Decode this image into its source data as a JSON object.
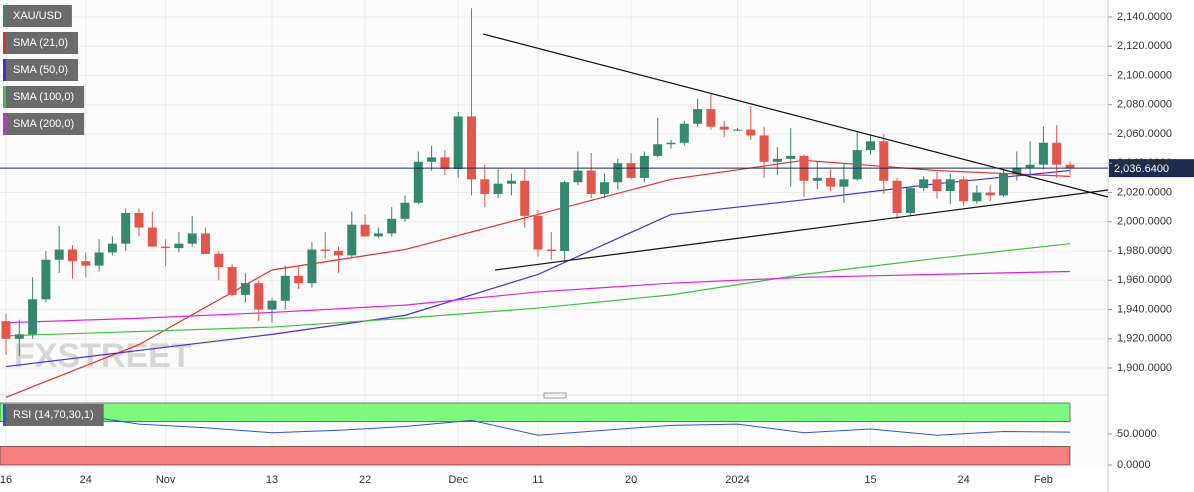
{
  "chart_data": [
    {
      "type": "candlestick",
      "name": "XAU/USD",
      "up_color": "#35876f",
      "down_color": "#e2564c",
      "categories": [
        "16",
        null,
        null,
        null,
        null,
        null,
        "24",
        null,
        null,
        null,
        null,
        null,
        "Nov",
        null,
        null,
        null,
        null,
        null,
        null,
        null,
        "13",
        null,
        null,
        null,
        null,
        null,
        null,
        "22",
        null,
        null,
        null,
        null,
        null,
        null,
        "Dec",
        null,
        null,
        null,
        null,
        null,
        "11",
        null,
        null,
        null,
        null,
        null,
        null,
        "20",
        null,
        null,
        null,
        null,
        null,
        null,
        null,
        "2024",
        null,
        null,
        null,
        null,
        null,
        null,
        null,
        null,
        null,
        "15",
        null,
        null,
        null,
        null,
        null,
        null,
        "24",
        null,
        null,
        null,
        null,
        null,
        "Feb",
        null,
        null
      ],
      "open": [
        1932,
        1920,
        1923,
        1947,
        1974,
        1981,
        1973,
        1970,
        1979,
        1985,
        2006,
        1996,
        1983,
        1982,
        1985,
        1992,
        1978,
        1969,
        1950,
        1958,
        1940,
        1946,
        1963,
        1958,
        1981,
        1980,
        1977,
        1998,
        1990,
        1992,
        2002,
        2013,
        2041,
        2044,
        2036,
        2072,
        2029,
        2019,
        2026,
        2028,
        2004,
        1981,
        1980,
        2027,
        2035,
        2019,
        2027,
        2040,
        2030,
        2045,
        2053,
        2054,
        2067,
        2077,
        2065,
        2063,
        2063,
        2059,
        2041,
        2043,
        2045,
        2028,
        2030,
        2024,
        2029,
        2049,
        2055,
        2028,
        2006,
        2023,
        2029,
        2021,
        2029,
        2014,
        2020,
        2018,
        2033,
        2037,
        2039,
        2054,
        2039
      ],
      "high": [
        1937,
        1933,
        1962,
        1980,
        1997,
        1984,
        1979,
        1988,
        1990,
        2009,
        2009,
        2007,
        1988,
        1993,
        2004,
        1996,
        1980,
        1971,
        1965,
        1960,
        1948,
        1970,
        1970,
        1986,
        1993,
        1983,
        2007,
        2005,
        1996,
        2010,
        2018,
        2048,
        2052,
        2049,
        2075,
        2146,
        2039,
        2036,
        2033,
        2036,
        2008,
        1993,
        2028,
        2048,
        2047,
        2033,
        2043,
        2047,
        2048,
        2071,
        2056,
        2069,
        2084,
        2088,
        2069,
        2064,
        2079,
        2065,
        2051,
        2064,
        2046,
        2041,
        2036,
        2040,
        2062,
        2059,
        2060,
        2030,
        2024,
        2031,
        2034,
        2033,
        2031,
        2025,
        2025,
        2036,
        2048,
        2055,
        2065,
        2066,
        2041
      ],
      "low": [
        1909,
        1908,
        1920,
        1945,
        1965,
        1961,
        1962,
        1966,
        1977,
        1980,
        1990,
        1985,
        1970,
        1979,
        1983,
        1978,
        1960,
        1949,
        1945,
        1932,
        1931,
        1940,
        1954,
        1955,
        1975,
        1965,
        1975,
        1990,
        1989,
        1990,
        2000,
        2012,
        2035,
        2032,
        2030,
        2018,
        2010,
        2016,
        2018,
        1996,
        1976,
        1974,
        1973,
        2025,
        2016,
        2016,
        2022,
        2029,
        2027,
        2044,
        2050,
        2052,
        2065,
        2063,
        2058,
        2062,
        2056,
        2030,
        2032,
        2024,
        2017,
        2022,
        2021,
        2013,
        2028,
        2046,
        2019,
        2002,
        2004,
        2021,
        2016,
        2012,
        2011,
        2012,
        2014,
        2017,
        2028,
        2030,
        2036,
        2030,
        2032
      ],
      "close": [
        1920,
        1923,
        1947,
        1974,
        1981,
        1973,
        1970,
        1979,
        1985,
        2006,
        1996,
        1983,
        1982,
        1985,
        1992,
        1978,
        1969,
        1950,
        1958,
        1940,
        1946,
        1963,
        1958,
        1981,
        1980,
        1977,
        1998,
        1990,
        1992,
        2002,
        2013,
        2041,
        2044,
        2036,
        2072,
        2029,
        2019,
        2026,
        2028,
        2004,
        1981,
        1980,
        2027,
        2035,
        2019,
        2027,
        2040,
        2030,
        2045,
        2053,
        2054,
        2067,
        2077,
        2065,
        2063,
        2063,
        2059,
        2041,
        2043,
        2045,
        2028,
        2030,
        2024,
        2029,
        2049,
        2055,
        2028,
        2006,
        2023,
        2029,
        2021,
        2029,
        2014,
        2020,
        2018,
        2033,
        2037,
        2039,
        2054,
        2039,
        2036.64
      ],
      "price_label": {
        "value": 2036.64,
        "label": "2,036.6400"
      },
      "series": [
        {
          "name": "SMA (21,0)",
          "color": "#e0312b",
          "x": [
            0,
            10,
            20,
            30,
            40,
            50,
            60,
            70,
            80
          ],
          "values": [
            1880,
            1916,
            1967,
            1981,
            2005,
            2029,
            2042,
            2035,
            2031
          ]
        },
        {
          "name": "SMA (50,0)",
          "color": "#4f2bd6",
          "x": [
            0,
            10,
            20,
            30,
            40,
            50,
            60,
            70,
            80
          ],
          "values": [
            1901,
            1912,
            1923,
            1936,
            1964,
            2005,
            2015,
            2026,
            2035
          ]
        },
        {
          "name": "SMA (100,0)",
          "color": "#3cc43c",
          "x": [
            0,
            10,
            20,
            30,
            40,
            50,
            60,
            70,
            80
          ],
          "values": [
            1922,
            1925,
            1928,
            1934,
            1941,
            1950,
            1964,
            1975,
            1985
          ]
        },
        {
          "name": "SMA (200,0)",
          "color": "#e020e0",
          "x": [
            0,
            10,
            20,
            30,
            40,
            50,
            60,
            70,
            80
          ],
          "values": [
            1931,
            1934,
            1938,
            1943,
            1952,
            1958,
            1962,
            1964,
            1966
          ]
        }
      ],
      "ylim": [
        1883.6,
        2151.6
      ],
      "yticks": [
        {
          "value": 2140,
          "label": "2,140.0000"
        },
        {
          "value": 2120,
          "label": "2,120.0000"
        },
        {
          "value": 2100,
          "label": "2,100.0000"
        },
        {
          "value": 2080,
          "label": "2,080.0000"
        },
        {
          "value": 2060,
          "label": "2,060.0000"
        },
        {
          "value": 2040,
          "label": "2,040.0000"
        },
        {
          "value": 2020,
          "label": "2,020.0000"
        },
        {
          "value": 2000,
          "label": "2,000.0000"
        },
        {
          "value": 1980,
          "label": "1,980.0000"
        },
        {
          "value": 1960,
          "label": "1,960.0000"
        },
        {
          "value": 1940,
          "label": "1,940.0000"
        },
        {
          "value": 1920,
          "label": "1,920.0000"
        },
        {
          "value": 1900,
          "label": "1,900.0000"
        }
      ],
      "grid": true,
      "watermark": "FXSTREET"
    },
    {
      "type": "line",
      "name": "RSI (14,70,30,1)",
      "color": "#3355cc",
      "x": [
        0,
        5,
        10,
        15,
        20,
        25,
        30,
        35,
        40,
        45,
        50,
        55,
        60,
        65,
        70,
        75,
        80
      ],
      "values": [
        90,
        82,
        66,
        60,
        52,
        56,
        62,
        72,
        48,
        56,
        64,
        66,
        52,
        58,
        48,
        54,
        53
      ],
      "upper": 70,
      "lower": 30,
      "upper_color": "#7dfa7d",
      "lower_color": "#f77f7f",
      "ylim": [
        0,
        100
      ],
      "yticks": [
        {
          "value": 50,
          "label": "50.0000"
        },
        {
          "value": 0,
          "label": "0.0000"
        }
      ]
    }
  ]
}
